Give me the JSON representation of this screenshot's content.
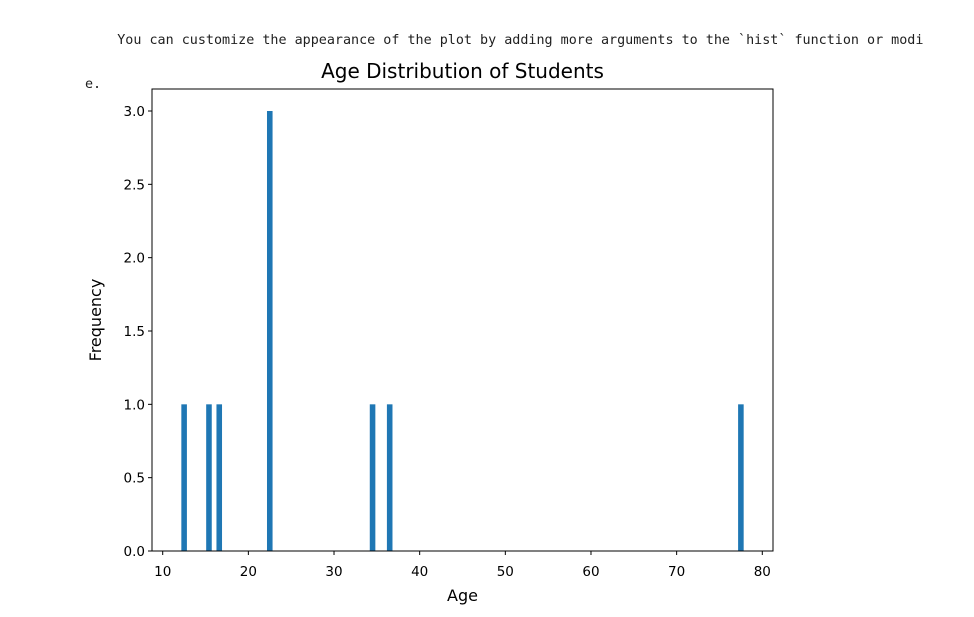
{
  "note": {
    "line1": "You can customize the appearance of the plot by adding more arguments to the `hist` function or modi",
    "line2": "e."
  },
  "chart_data": {
    "type": "bar",
    "title": "Age Distribution of Students",
    "xlabel": "Age",
    "ylabel": "Frequency",
    "xlim": [
      8.75,
      81.25
    ],
    "ylim": [
      0,
      3.15
    ],
    "xticks": [
      10,
      20,
      30,
      40,
      50,
      60,
      70,
      80
    ],
    "yticks": [
      0.0,
      0.5,
      1.0,
      1.5,
      2.0,
      2.5,
      3.0
    ],
    "bar_color": "#1f77b4",
    "bin_width": 0.65,
    "bins": [
      {
        "x": 12.5,
        "value": 1
      },
      {
        "x": 15.4,
        "value": 1
      },
      {
        "x": 16.6,
        "value": 1
      },
      {
        "x": 22.5,
        "value": 3
      },
      {
        "x": 34.5,
        "value": 1
      },
      {
        "x": 36.5,
        "value": 1
      },
      {
        "x": 77.5,
        "value": 1
      }
    ],
    "grid": false
  }
}
